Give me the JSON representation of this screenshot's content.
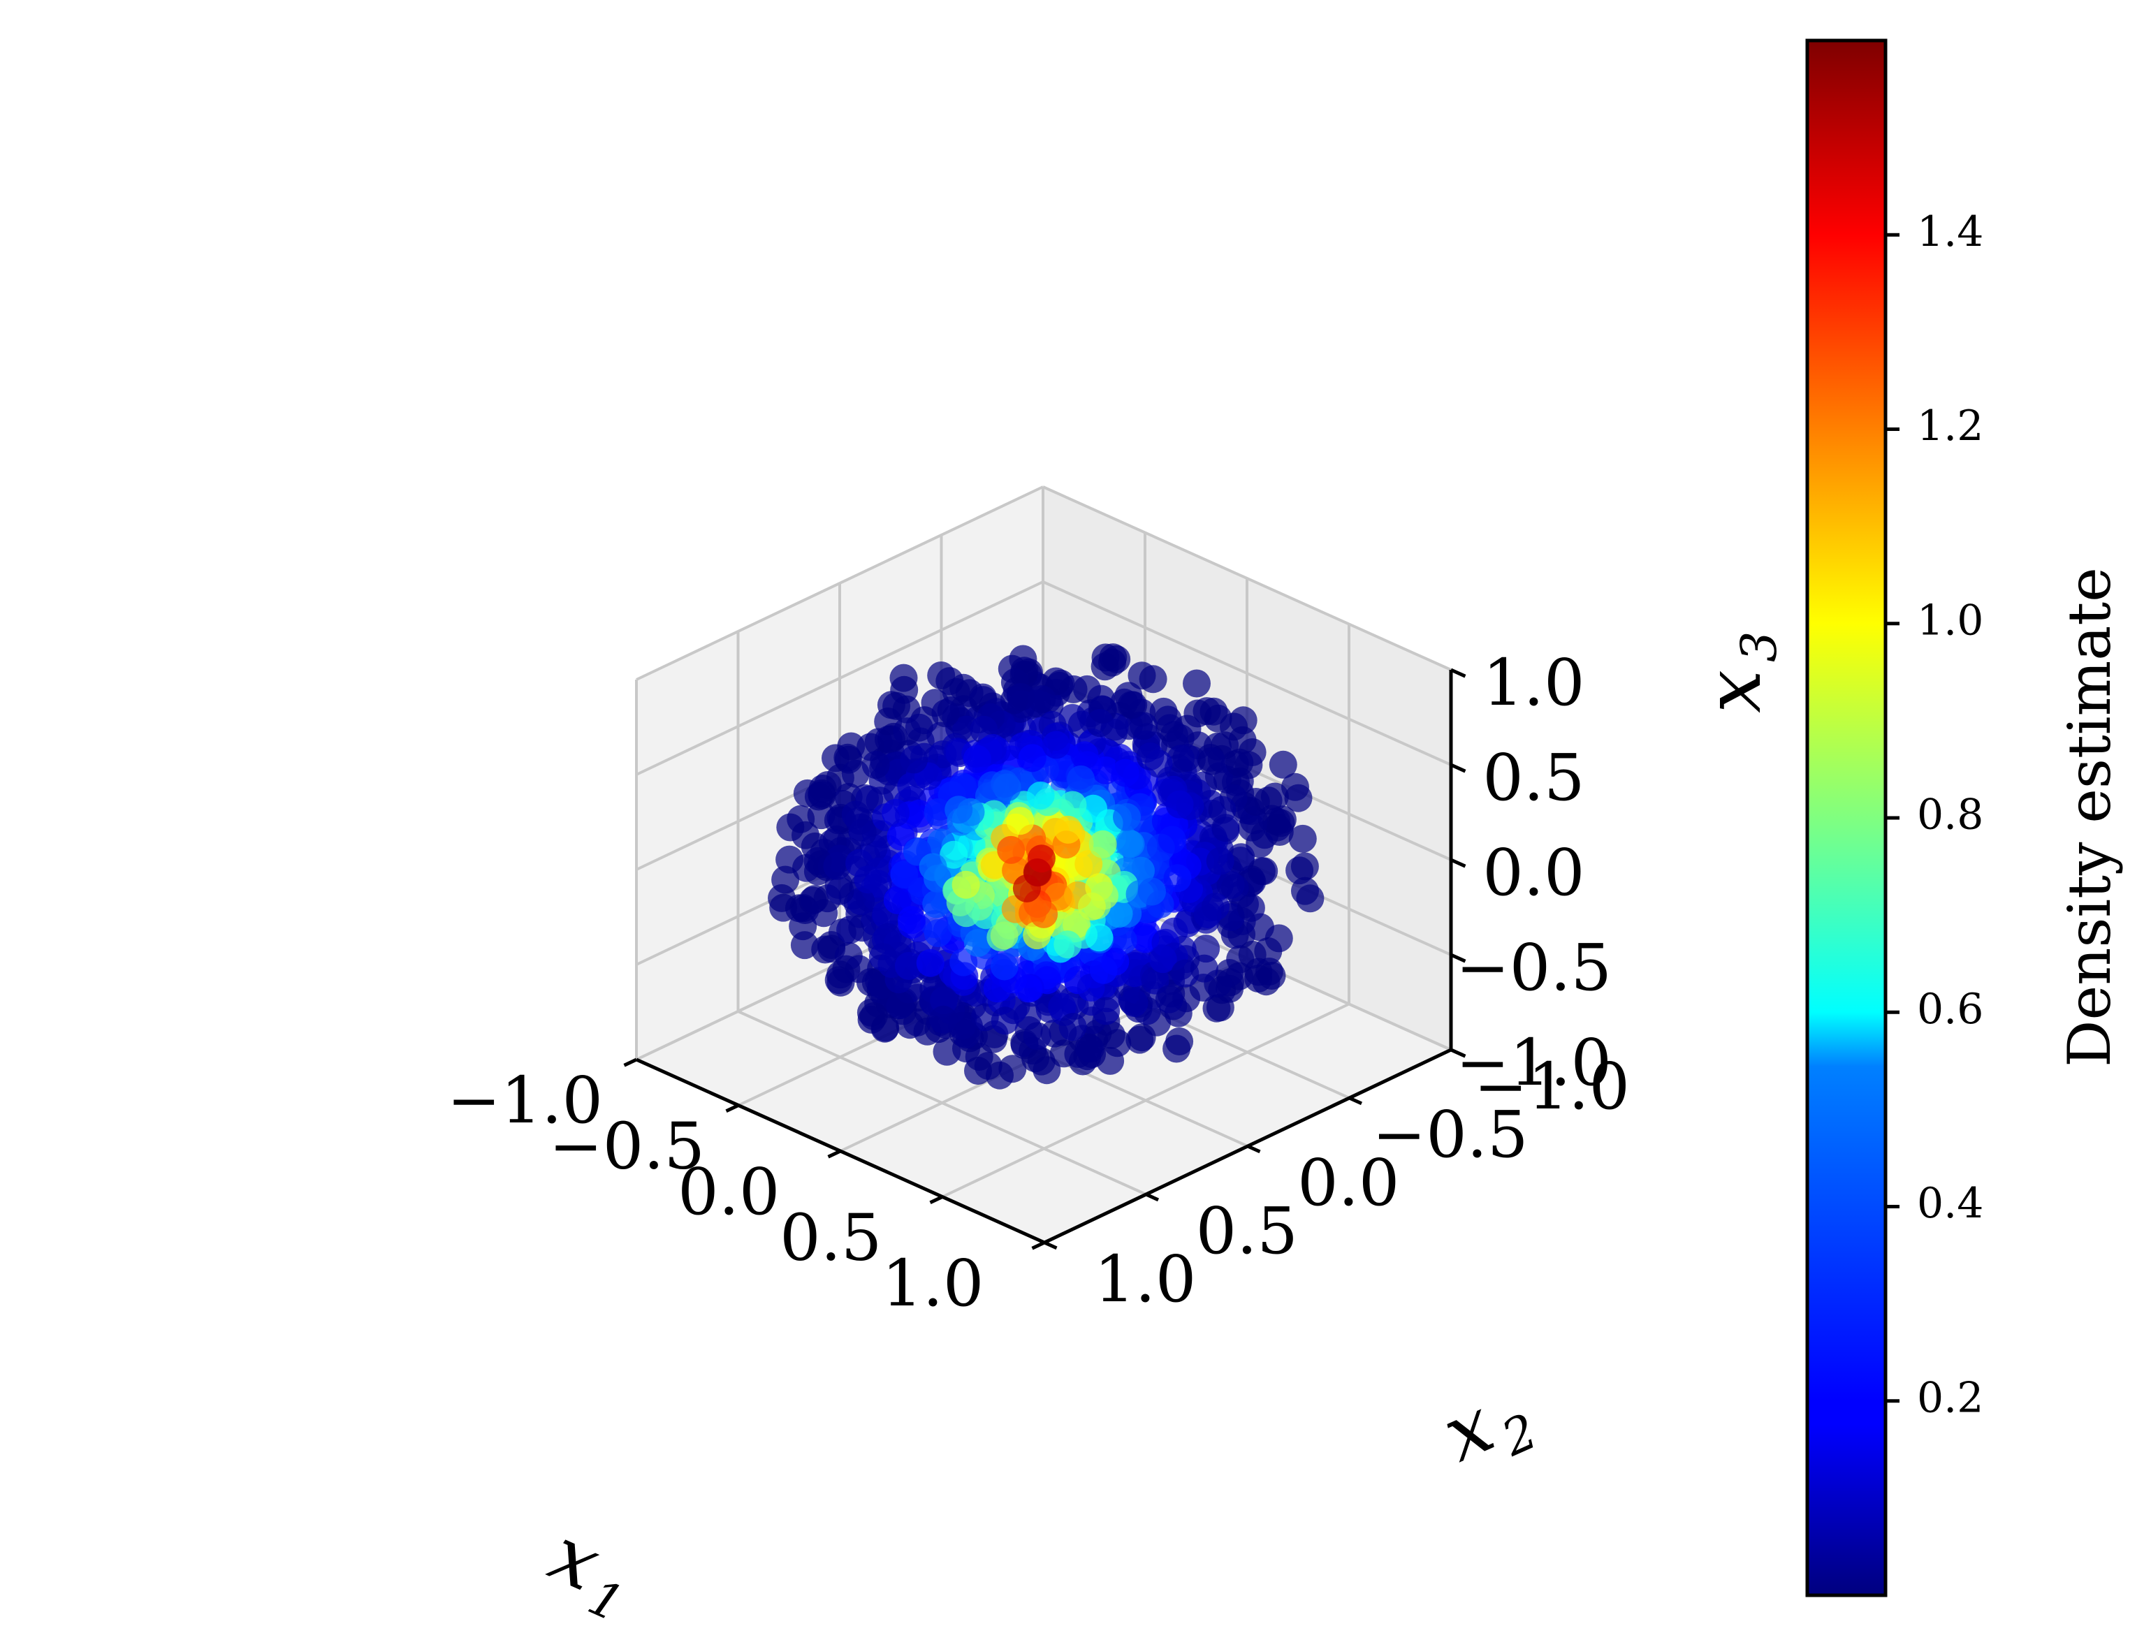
{
  "chart_data": {
    "type": "scatter",
    "projection": "3d",
    "title": "",
    "axes": {
      "x1": {
        "label": "x",
        "subscript": "1",
        "range": [
          -1.0,
          1.0
        ],
        "ticks": [
          "−1.0",
          "−0.5",
          "0.0",
          "0.5",
          "1.0"
        ]
      },
      "x2": {
        "label": "x",
        "subscript": "2",
        "range": [
          -1.0,
          1.0
        ],
        "ticks": [
          "−1.0",
          "−0.5",
          "0.0",
          "0.5",
          "1.0"
        ]
      },
      "x3": {
        "label": "x",
        "subscript": "3",
        "range": [
          -1.0,
          1.0
        ],
        "ticks": [
          "−1.0",
          "−0.5",
          "0.0",
          "0.5",
          "1.0"
        ]
      }
    },
    "grid": true,
    "point_cloud": {
      "description_shape": "unit ball",
      "radius": 0.95,
      "point_count": 1400,
      "marker": "circle",
      "alpha": 0.7
    },
    "colorbar": {
      "label": "Density estimate",
      "colormap": "jet",
      "range": [
        0.0,
        1.6
      ],
      "ticks": [
        "0.2",
        "0.4",
        "0.6",
        "0.8",
        "1.0",
        "1.2",
        "1.4"
      ],
      "tick_values": [
        0.2,
        0.4,
        0.6,
        0.8,
        1.0,
        1.2,
        1.4
      ]
    }
  }
}
